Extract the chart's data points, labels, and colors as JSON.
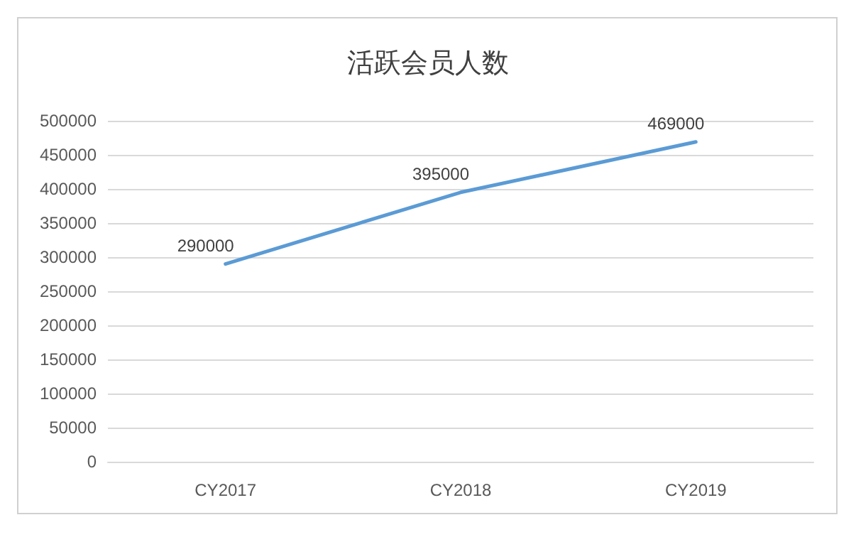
{
  "chart_data": {
    "type": "line",
    "title": "活跃会员人数",
    "categories": [
      "CY2017",
      "CY2018",
      "CY2019"
    ],
    "series": [
      {
        "color": "#5b9bd5",
        "values": [
          290000,
          395000,
          469000
        ]
      }
    ],
    "ylim": [
      0,
      500000
    ],
    "yticks": [
      0,
      50000,
      100000,
      150000,
      200000,
      250000,
      300000,
      350000,
      400000,
      450000,
      500000
    ],
    "grid": "y",
    "marker": "none",
    "line_style": "solid",
    "data_labels": true
  }
}
